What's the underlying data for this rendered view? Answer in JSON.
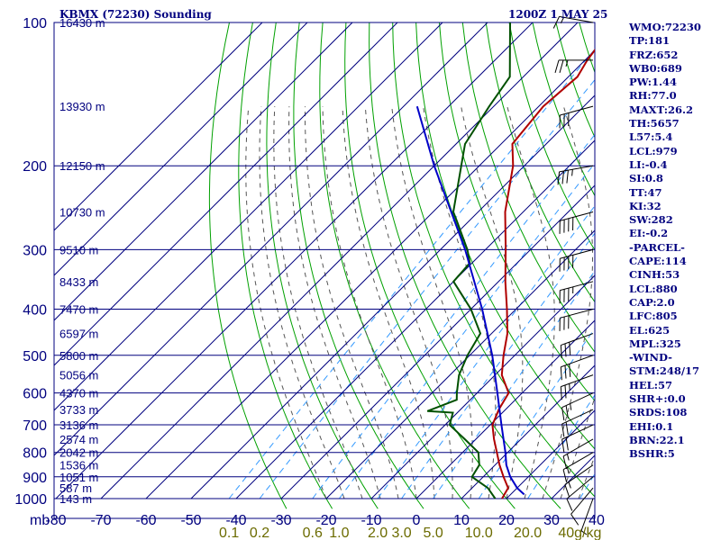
{
  "header": {
    "station": "KBMX (72230) Sounding",
    "time": "1200Z  1 MAY 25"
  },
  "colors": {
    "grid": "#00007f",
    "dry_adiabat": "#00a000",
    "moist_adiabat": "#555555",
    "mixing_ratio": "#3399ff",
    "temperature": "#b00000",
    "dewpoint": "#005000",
    "parcel": "#0000c8",
    "wind_barb": "#000000"
  },
  "indices": [
    "WMO:72230",
    "TP:181",
    "FRZ:652",
    "WB0:689",
    "PW:1.44",
    "RH:77.0",
    "MAXT:26.2",
    "TH:5657",
    "L57:5.4",
    "LCL:979",
    "LI:-0.4",
    "SI:0.8",
    "TT:47",
    "KI:32",
    "SW:282",
    "EI:-0.2",
    "-PARCEL-",
    "CAPE:114",
    "CINH:53",
    "LCL:880",
    "CAP:2.0",
    "LFC:805",
    "EL:625",
    "MPL:325",
    "-WIND-",
    "STM:248/17",
    "HEL:57",
    "SHR+:0.0",
    "SRDS:108",
    "EHI:0.1",
    "BRN:22.1",
    "BSHR:5"
  ],
  "chart_data": {
    "type": "skew-t",
    "pressure_axis": {
      "scale": "log",
      "range_hpa": [
        1000,
        100
      ],
      "ticks": [
        {
          "p": 100,
          "label": "100"
        },
        {
          "p": 200,
          "label": "200"
        },
        {
          "p": 300,
          "label": "300"
        },
        {
          "p": 400,
          "label": "400"
        },
        {
          "p": 500,
          "label": "500"
        },
        {
          "p": 600,
          "label": "600"
        },
        {
          "p": 700,
          "label": "700"
        },
        {
          "p": 800,
          "label": "800"
        },
        {
          "p": 900,
          "label": "900"
        },
        {
          "p": 1000,
          "label": "1000"
        }
      ],
      "unit_label": "mb"
    },
    "temperature_axis": {
      "ticks": [
        {
          "t": -80,
          "label": "-80"
        },
        {
          "t": -70,
          "label": "-70"
        },
        {
          "t": -60,
          "label": "-60"
        },
        {
          "t": -50,
          "label": "-50"
        },
        {
          "t": -40,
          "label": "-40"
        },
        {
          "t": -30,
          "label": "-30"
        },
        {
          "t": -20,
          "label": "-20"
        },
        {
          "t": -10,
          "label": "-10"
        },
        {
          "t": 0,
          "label": "0"
        },
        {
          "t": 10,
          "label": "10"
        },
        {
          "t": 20,
          "label": "20"
        },
        {
          "t": 30,
          "label": "30"
        },
        {
          "t": 40,
          "label": "40"
        }
      ]
    },
    "height_labels": [
      {
        "p": 100,
        "label": "16430 m"
      },
      {
        "p": 150,
        "label": "13930 m"
      },
      {
        "p": 200,
        "label": "12150 m"
      },
      {
        "p": 250,
        "label": "10730 m"
      },
      {
        "p": 300,
        "label": "9510 m"
      },
      {
        "p": 350,
        "label": "8433 m"
      },
      {
        "p": 400,
        "label": "7470 m"
      },
      {
        "p": 450,
        "label": "6597 m"
      },
      {
        "p": 500,
        "label": "5800 m"
      },
      {
        "p": 550,
        "label": "5056 m"
      },
      {
        "p": 600,
        "label": "4370 m"
      },
      {
        "p": 650,
        "label": "3733 m"
      },
      {
        "p": 700,
        "label": "3136 m"
      },
      {
        "p": 750,
        "label": "2574 m"
      },
      {
        "p": 800,
        "label": "2042 m"
      },
      {
        "p": 850,
        "label": "1536 m"
      },
      {
        "p": 900,
        "label": "1051 m"
      },
      {
        "p": 950,
        "label": "587 m"
      },
      {
        "p": 1000,
        "label": "143 m"
      }
    ],
    "mixing_ratio_labels": [
      {
        "w": 0.1,
        "label": "0.1"
      },
      {
        "w": 0.2,
        "label": "0.2"
      },
      {
        "w": 0.6,
        "label": "0.6"
      },
      {
        "w": 1.0,
        "label": "1.0"
      },
      {
        "w": 2.0,
        "label": "2.0"
      },
      {
        "w": 3.0,
        "label": "3.0"
      },
      {
        "w": 5.0,
        "label": "5.0"
      },
      {
        "w": 10.0,
        "label": "10.0"
      },
      {
        "w": 20.0,
        "label": "20.0"
      },
      {
        "w": 40.0,
        "label": "40g/kg"
      }
    ],
    "series": [
      {
        "name": "temperature",
        "points": [
          {
            "p": 1000,
            "t": 19.0
          },
          {
            "p": 950,
            "t": 18.0
          },
          {
            "p": 900,
            "t": 14.5
          },
          {
            "p": 850,
            "t": 11.0
          },
          {
            "p": 800,
            "t": 7.6
          },
          {
            "p": 750,
            "t": 4.0
          },
          {
            "p": 700,
            "t": 0.5
          },
          {
            "p": 650,
            "t": -1.5
          },
          {
            "p": 600,
            "t": -3.0
          },
          {
            "p": 550,
            "t": -8.5
          },
          {
            "p": 500,
            "t": -12.5
          },
          {
            "p": 450,
            "t": -16.5
          },
          {
            "p": 400,
            "t": -22.0
          },
          {
            "p": 350,
            "t": -28.5
          },
          {
            "p": 300,
            "t": -35.5
          },
          {
            "p": 250,
            "t": -44.0
          },
          {
            "p": 200,
            "t": -52.5
          },
          {
            "p": 180,
            "t": -57.5
          },
          {
            "p": 150,
            "t": -59.0
          },
          {
            "p": 130,
            "t": -58.0
          },
          {
            "p": 120,
            "t": -59.5
          },
          {
            "p": 110,
            "t": -60.5
          },
          {
            "p": 100,
            "t": -62.0
          }
        ]
      },
      {
        "name": "dewpoint",
        "points": [
          {
            "p": 1000,
            "t": 17.5
          },
          {
            "p": 950,
            "t": 13.5
          },
          {
            "p": 900,
            "t": 7.5
          },
          {
            "p": 850,
            "t": 6.5
          },
          {
            "p": 800,
            "t": 3.5
          },
          {
            "p": 750,
            "t": -2.5
          },
          {
            "p": 700,
            "t": -9.0
          },
          {
            "p": 660,
            "t": -11.0
          },
          {
            "p": 655,
            "t": -17.0
          },
          {
            "p": 620,
            "t": -13.0
          },
          {
            "p": 600,
            "t": -14.5
          },
          {
            "p": 550,
            "t": -18.0
          },
          {
            "p": 500,
            "t": -20.5
          },
          {
            "p": 450,
            "t": -22.5
          },
          {
            "p": 400,
            "t": -30.0
          },
          {
            "p": 350,
            "t": -40.0
          },
          {
            "p": 320,
            "t": -40.5
          },
          {
            "p": 300,
            "t": -44.0
          },
          {
            "p": 260,
            "t": -53.0
          },
          {
            "p": 250,
            "t": -55.5
          },
          {
            "p": 200,
            "t": -64.0
          },
          {
            "p": 180,
            "t": -68.0
          },
          {
            "p": 150,
            "t": -71.0
          },
          {
            "p": 130,
            "t": -73.0
          },
          {
            "p": 100,
            "t": -85.0
          }
        ]
      },
      {
        "name": "parcel",
        "points": [
          {
            "p": 980,
            "t": 23.0
          },
          {
            "p": 950,
            "t": 20.0
          },
          {
            "p": 900,
            "t": 16.0
          },
          {
            "p": 850,
            "t": 12.5
          },
          {
            "p": 800,
            "t": 9.5
          },
          {
            "p": 700,
            "t": 2.5
          },
          {
            "p": 600,
            "t": -5.5
          },
          {
            "p": 500,
            "t": -15.0
          },
          {
            "p": 400,
            "t": -27.5
          },
          {
            "p": 300,
            "t": -44.5
          },
          {
            "p": 200,
            "t": -70.0
          },
          {
            "p": 150,
            "t": -87.0
          }
        ]
      }
    ],
    "wind_barbs": [
      {
        "p": 1000,
        "dir": 200,
        "spd": 5
      },
      {
        "p": 950,
        "dir": 220,
        "spd": 10
      },
      {
        "p": 900,
        "dir": 230,
        "spd": 10
      },
      {
        "p": 850,
        "dir": 235,
        "spd": 15
      },
      {
        "p": 800,
        "dir": 240,
        "spd": 15
      },
      {
        "p": 750,
        "dir": 240,
        "spd": 15
      },
      {
        "p": 700,
        "dir": 245,
        "spd": 20
      },
      {
        "p": 650,
        "dir": 245,
        "spd": 20
      },
      {
        "p": 600,
        "dir": 245,
        "spd": 25
      },
      {
        "p": 550,
        "dir": 250,
        "spd": 25
      },
      {
        "p": 500,
        "dir": 250,
        "spd": 30
      },
      {
        "p": 450,
        "dir": 250,
        "spd": 30
      },
      {
        "p": 400,
        "dir": 255,
        "spd": 30
      },
      {
        "p": 350,
        "dir": 255,
        "spd": 35
      },
      {
        "p": 300,
        "dir": 255,
        "spd": 40
      },
      {
        "p": 250,
        "dir": 255,
        "spd": 40
      },
      {
        "p": 200,
        "dir": 260,
        "spd": 35
      },
      {
        "p": 150,
        "dir": 255,
        "spd": 30
      },
      {
        "p": 120,
        "dir": 270,
        "spd": 25
      },
      {
        "p": 100,
        "dir": 280,
        "spd": 15
      }
    ]
  }
}
